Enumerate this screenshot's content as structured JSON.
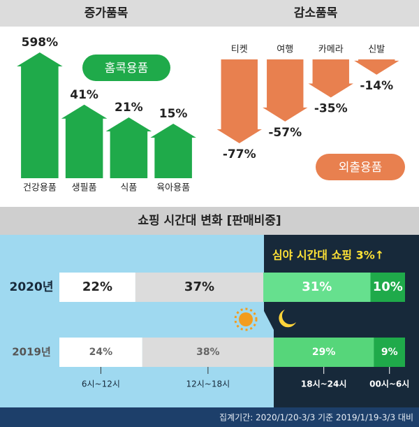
{
  "chart_data": [
    {
      "type": "arrow-up",
      "title": "증가품목",
      "badge": "홈콕용품",
      "categories": [
        "건강용품",
        "생필품",
        "식품",
        "육아용품"
      ],
      "values": [
        598,
        41,
        21,
        15
      ],
      "value_labels": [
        "598%",
        "41%",
        "21%",
        "15%"
      ],
      "color": "#1faa4a",
      "log_scale": true
    },
    {
      "type": "arrow-down",
      "title": "감소품목",
      "badge": "외출용품",
      "categories": [
        "티켓",
        "여행",
        "카메라",
        "신발"
      ],
      "values": [
        -77,
        -57,
        -35,
        -14
      ],
      "value_labels": [
        "-77%",
        "-57%",
        "-35%",
        "-14%"
      ],
      "color": "#e8804f"
    },
    {
      "type": "stacked-bar",
      "title": "쇼핑 시간대 변화 [판매비중]",
      "annotation": "심야 시간대 쇼핑 3%↑",
      "categories": [
        "6시~12시",
        "12시~18시",
        "18시~24시",
        "00시~6시"
      ],
      "series": [
        {
          "name": "2020년",
          "colors": [
            "#ffffff",
            "#dcdcdc",
            "#66e08e",
            "#1faa4a"
          ],
          "values": [
            22,
            37,
            31,
            10
          ],
          "value_labels": [
            "22%",
            "37%",
            "31%",
            "10%"
          ]
        },
        {
          "name": "2019년",
          "colors": [
            "#ffffff",
            "#dcdcdc",
            "#56d67a",
            "#1faa4a"
          ],
          "values": [
            24,
            38,
            29,
            9
          ],
          "value_labels": [
            "24%",
            "38%",
            "29%",
            "9%"
          ]
        }
      ]
    }
  ],
  "footer": "집계기간: 2020/1/20-3/3 기준 2019/1/19-3/3 대비"
}
